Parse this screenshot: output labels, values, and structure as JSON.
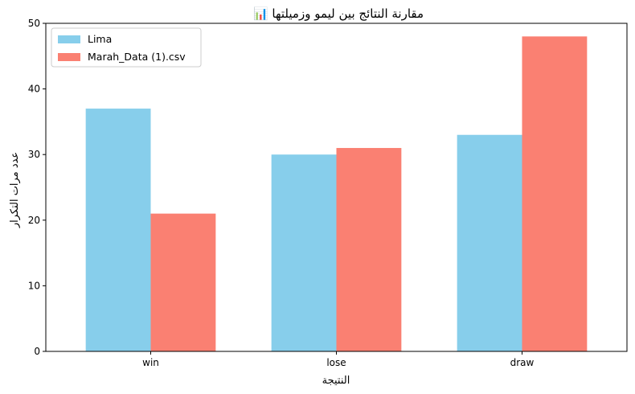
{
  "chart_data": {
    "type": "bar",
    "title": "📊 مقارنة النتائج بين ليمو وزميلتها",
    "xlabel": "النتيجة",
    "ylabel": "عدد مرات التكرار",
    "categories": [
      "win",
      "lose",
      "draw"
    ],
    "series": [
      {
        "name": "Lima",
        "values": [
          37,
          30,
          33
        ],
        "color": "#87ceeb"
      },
      {
        "name": "Marah_Data (1).csv",
        "values": [
          21,
          31,
          48
        ],
        "color": "#fa8072"
      }
    ],
    "ylim": [
      0,
      50
    ],
    "yticks": [
      0,
      10,
      20,
      30,
      40,
      50
    ],
    "grid": false,
    "legend": "top-left"
  }
}
